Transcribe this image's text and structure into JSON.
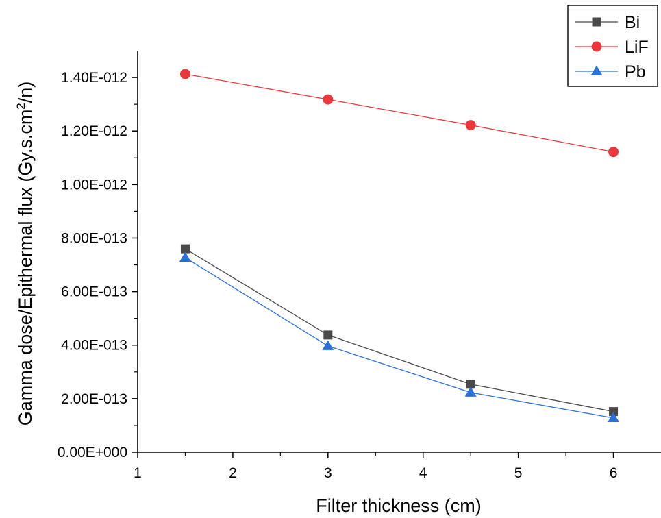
{
  "chart_data": {
    "type": "line",
    "title": "",
    "xlabel": "Filter thickness (cm)",
    "ylabel_main": "Gamma dose/Epithermal flux (Gy.s.cm",
    "ylabel_sup": "2",
    "ylabel_tail": "/n)",
    "xlim": [
      1,
      6.5
    ],
    "ylim": [
      0,
      1.5e-12
    ],
    "x_ticks": [
      1,
      2,
      3,
      4,
      5,
      6
    ],
    "x_tick_labels": [
      "1",
      "2",
      "3",
      "4",
      "5",
      "6"
    ],
    "y_ticks": [
      0,
      2e-13,
      4e-13,
      6e-13,
      8e-13,
      1e-12,
      1.2e-12,
      1.4e-12
    ],
    "y_tick_labels": [
      "0.00E+000",
      "2.00E-013",
      "4.00E-013",
      "6.00E-013",
      "8.00E-013",
      "1.00E-012",
      "1.20E-012",
      "1.40E-012"
    ],
    "x": [
      1.5,
      3,
      4.5,
      6
    ],
    "series": [
      {
        "name": "Bi",
        "values": [
          7.6e-13,
          4.38e-13,
          2.54e-13,
          1.52e-13
        ],
        "color": "#4a4a4a",
        "marker": "square"
      },
      {
        "name": "LiF",
        "values": [
          1.413e-12,
          1.318e-12,
          1.222e-12,
          1.122e-12
        ],
        "color": "#e8383d",
        "marker": "circle"
      },
      {
        "name": "Pb",
        "values": [
          7.27e-13,
          3.97e-13,
          2.23e-13,
          1.28e-13
        ],
        "color": "#2b6fd8",
        "marker": "triangle"
      }
    ],
    "legend_position": "top-right",
    "grid": false
  }
}
